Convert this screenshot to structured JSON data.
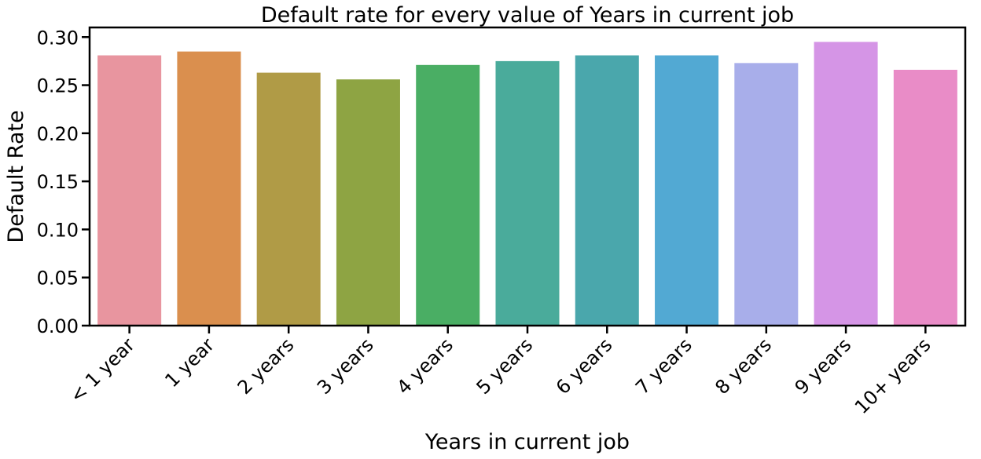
{
  "chart_data": {
    "type": "bar",
    "title": "Default rate for every value of Years in current job",
    "xlabel": "Years in current job",
    "ylabel": "Default Rate",
    "categories": [
      "< 1 year",
      "1 year",
      "2 years",
      "3 years",
      "4 years",
      "5 years",
      "6 years",
      "7 years",
      "8 years",
      "9 years",
      "10+ years"
    ],
    "values": [
      0.281,
      0.285,
      0.263,
      0.256,
      0.271,
      0.275,
      0.281,
      0.281,
      0.273,
      0.295,
      0.266
    ],
    "colors": [
      "#e8959f",
      "#da8f4e",
      "#b09b46",
      "#8ea443",
      "#4aae64",
      "#4aab9b",
      "#4aa7ac",
      "#52a9d3",
      "#a8aeea",
      "#d595e6",
      "#e98cc7"
    ],
    "ylim": [
      0,
      0.31
    ],
    "yticks": [
      "0.00",
      "0.05",
      "0.10",
      "0.15",
      "0.20",
      "0.25",
      "0.30"
    ],
    "legend": false,
    "grid": false
  }
}
